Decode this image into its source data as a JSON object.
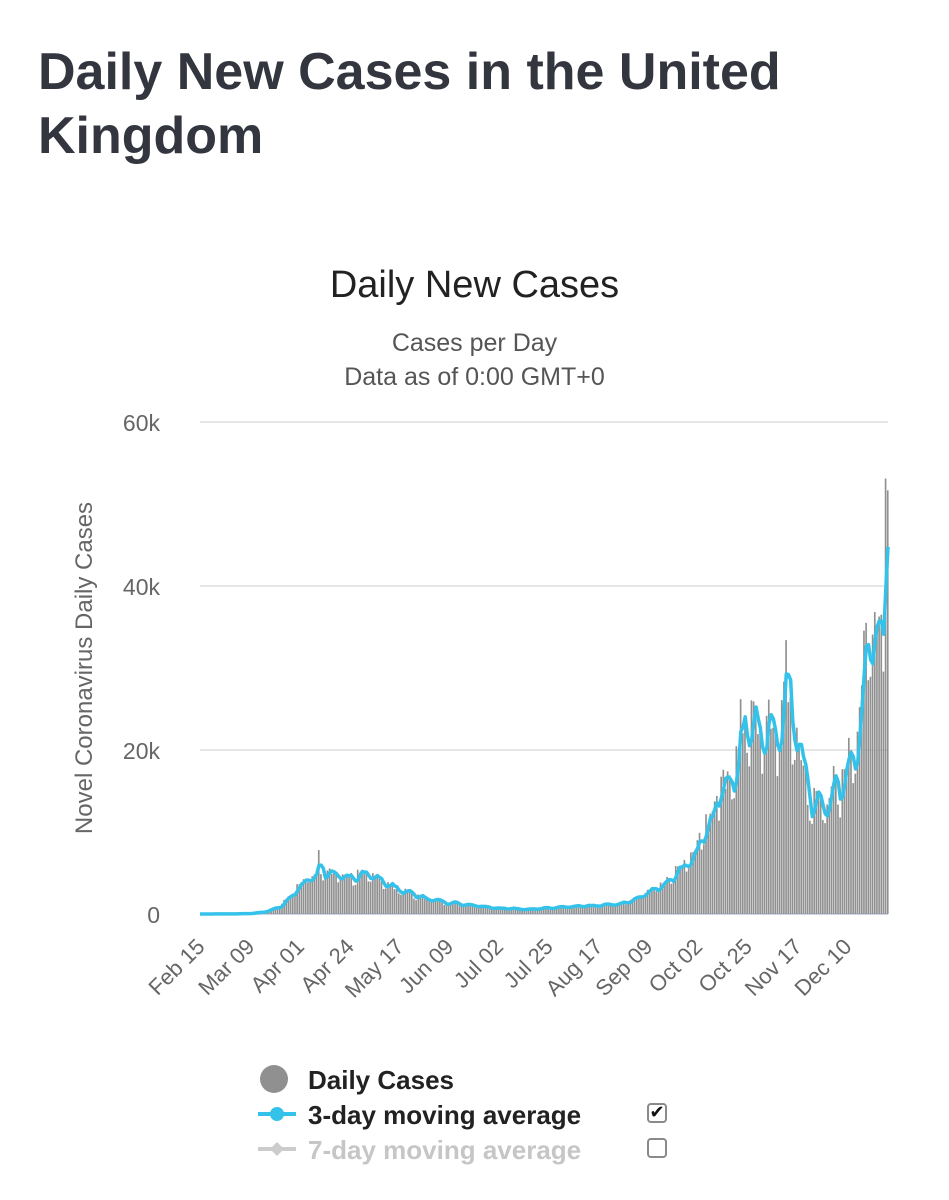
{
  "page": {
    "title": "Daily New Cases in the United Kingdom"
  },
  "colors": {
    "bars": "#909090",
    "avg3": "#35c2ea",
    "avg7": "#cccccc",
    "grid": "#dddddd",
    "title": "#33363f"
  },
  "chart_data": {
    "type": "bar",
    "title": "Daily New Cases",
    "subtitle_line1": "Cases per Day",
    "subtitle_line2": "Data as of 0:00 GMT+0",
    "ylabel": "Novel Coronavirus Daily Cases",
    "ylim": [
      0,
      60000
    ],
    "yticks": [
      0,
      20000,
      40000,
      60000
    ],
    "ytick_labels": [
      "0",
      "20k",
      "40k",
      "60k"
    ],
    "x_start": "Feb 15",
    "x_end": "Dec 29",
    "xtick_labels": [
      "Feb 15",
      "Mar 09",
      "Apr 01",
      "Apr 24",
      "May 17",
      "Jun 09",
      "Jul 02",
      "Jul 25",
      "Aug 17",
      "Sep 09",
      "Oct 02",
      "Oct 25",
      "Nov 17",
      "Dec 10"
    ],
    "grid": true,
    "legend_position": "bottom",
    "key_points": [
      [
        "Feb 15",
        0
      ],
      [
        "Mar 01",
        20
      ],
      [
        "Mar 09",
        60
      ],
      [
        "Mar 16",
        300
      ],
      [
        "Mar 23",
        1000
      ],
      [
        "Mar 30",
        3000
      ],
      [
        "Apr 05",
        4500
      ],
      [
        "Apr 10",
        5200
      ],
      [
        "Apr 15",
        4900
      ],
      [
        "Apr 24",
        4600
      ],
      [
        "May 01",
        4500
      ],
      [
        "May 06",
        4800
      ],
      [
        "May 10",
        3800
      ],
      [
        "May 17",
        3000
      ],
      [
        "May 24",
        2300
      ],
      [
        "May 31",
        1800
      ],
      [
        "Jun 09",
        1400
      ],
      [
        "Jun 20",
        1100
      ],
      [
        "Jul 02",
        700
      ],
      [
        "Jul 14",
        600
      ],
      [
        "Jul 25",
        750
      ],
      [
        "Aug 05",
        900
      ],
      [
        "Aug 17",
        1050
      ],
      [
        "Aug 28",
        1300
      ],
      [
        "Sep 05",
        2200
      ],
      [
        "Sep 09",
        2900
      ],
      [
        "Sep 16",
        3500
      ],
      [
        "Sep 23",
        5500
      ],
      [
        "Sep 30",
        7500
      ],
      [
        "Oct 02",
        8500
      ],
      [
        "Oct 08",
        12000
      ],
      [
        "Oct 12",
        15000
      ],
      [
        "Oct 17",
        17000
      ],
      [
        "Oct 22",
        20000
      ],
      [
        "Oct 25",
        22000
      ],
      [
        "Oct 28",
        23500
      ],
      [
        "Nov 01",
        22500
      ],
      [
        "Nov 04",
        23000
      ],
      [
        "Nov 08",
        22000
      ],
      [
        "Nov 12",
        27000
      ],
      [
        "Nov 15",
        24000
      ],
      [
        "Nov 17",
        20000
      ],
      [
        "Nov 20",
        18000
      ],
      [
        "Nov 24",
        14000
      ],
      [
        "Nov 28",
        13500
      ],
      [
        "Dec 01",
        14000
      ],
      [
        "Dec 04",
        16000
      ],
      [
        "Dec 07",
        14500
      ],
      [
        "Dec 10",
        18500
      ],
      [
        "Dec 13",
        20500
      ],
      [
        "Dec 16",
        25000
      ],
      [
        "Dec 19",
        33000
      ],
      [
        "Dec 22",
        36000
      ],
      [
        "Dec 25",
        35000
      ],
      [
        "Dec 27",
        38000
      ],
      [
        "Dec 29",
        49000
      ]
    ],
    "spikes": [
      [
        "Apr 10",
        7800
      ],
      [
        "Apr 28",
        5400
      ],
      [
        "Oct 02",
        9000
      ],
      [
        "Oct 11",
        14400
      ],
      [
        "Oct 22",
        26200
      ],
      [
        "Nov 12",
        33400
      ],
      [
        "Nov 24",
        11000
      ],
      [
        "Dec 19",
        35500
      ],
      [
        "Dec 28",
        53100
      ]
    ],
    "legend": [
      {
        "label": "Daily Cases",
        "enabled": true
      },
      {
        "label": "3-day moving average",
        "enabled": true
      },
      {
        "label": "7-day moving average",
        "enabled": false
      }
    ]
  }
}
